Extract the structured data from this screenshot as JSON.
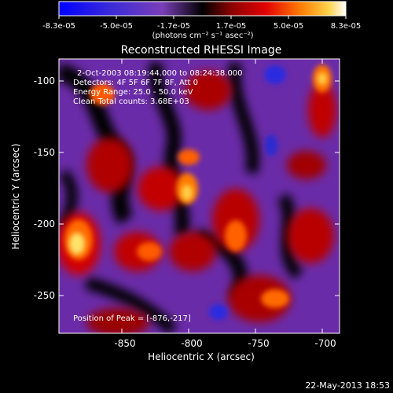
{
  "colorbar": {
    "tick_labels": [
      "-8.3e-05",
      "-5.0e-05",
      "-1.7e-05",
      "1.7e-05",
      "5.0e-05",
      "8.3e-05"
    ],
    "unit_label": "(photons cm⁻² s⁻¹ asec⁻²)"
  },
  "plot": {
    "title": "Reconstructed RHESSI Image",
    "xlabel": "Heliocentric X (arcsec)",
    "ylabel": "Heliocentric Y (arcsec)",
    "x_ticks": [
      "-850",
      "-800",
      "-750",
      "-700"
    ],
    "y_ticks": [
      "-100",
      "-150",
      "-200",
      "-250"
    ],
    "info_lines": [
      "2-Oct-2003 08:19:44.000 to 08:24:38.000",
      "Detectors: 4F 5F 6F 7F 8F, Att 0",
      "Energy Range: 25.0 - 50.0 keV",
      "Clean    Total counts: 3.68E+03"
    ],
    "peak_label": "Position of Peak = [-876,-217]"
  },
  "footer": {
    "timestamp": "22-May-2013 18:53"
  }
}
